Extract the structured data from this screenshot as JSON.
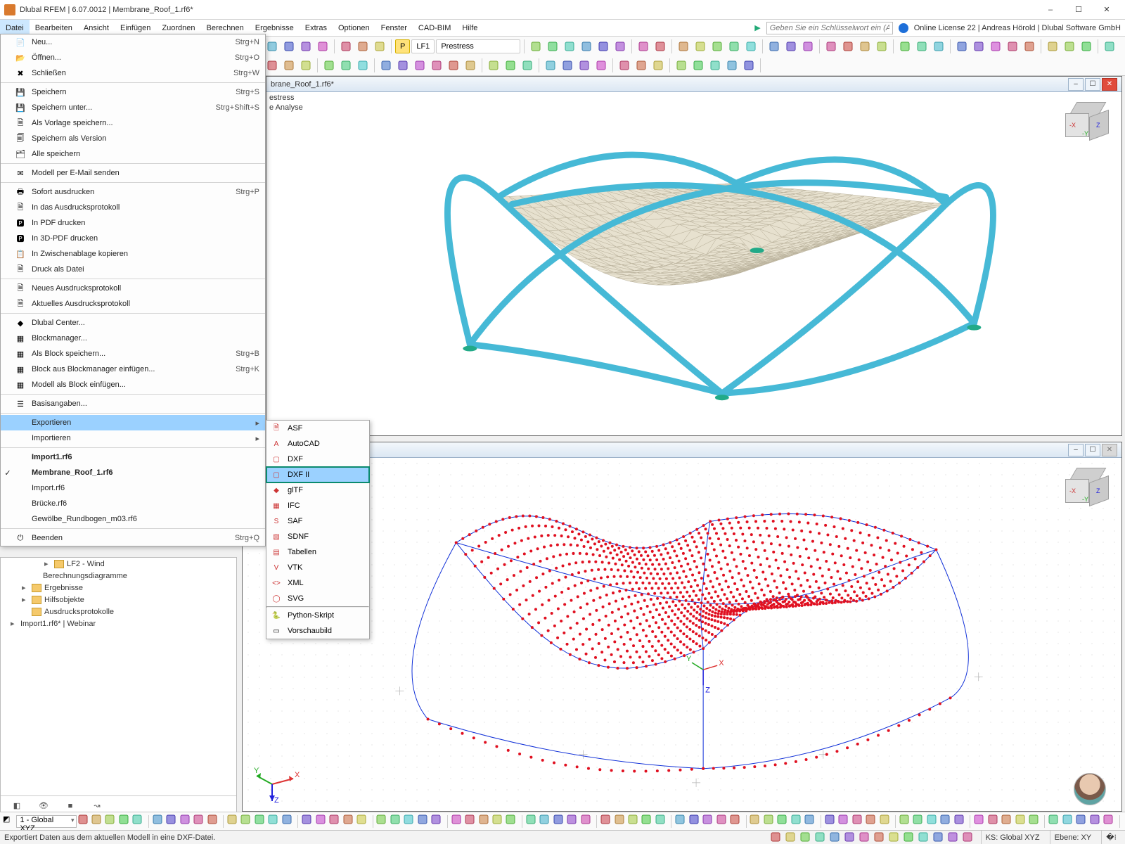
{
  "window": {
    "title": "Dlubal RFEM | 6.07.0012 | Membrane_Roof_1.rf6*",
    "license_text": "Online License 22 | Andreas Hörold | Dlubal Software GmbH",
    "search_placeholder": "Geben Sie ein Schlüsselwort ein (Alt…"
  },
  "menubar": {
    "items": [
      "Datei",
      "Bearbeiten",
      "Ansicht",
      "Einfügen",
      "Zuordnen",
      "Berechnen",
      "Ergebnisse",
      "Extras",
      "Optionen",
      "Fenster",
      "CAD-BIM",
      "Hilfe"
    ],
    "active_index": 0
  },
  "toolbar": {
    "lf_badge": "LF1",
    "lf_text": "Prestress",
    "p_badge": "P"
  },
  "file_menu": {
    "groups": [
      [
        {
          "label": "Neu...",
          "shortcut": "Strg+N",
          "icon": "new"
        },
        {
          "label": "Öffnen...",
          "shortcut": "Strg+O",
          "icon": "open"
        },
        {
          "label": "Schließen",
          "shortcut": "Strg+W",
          "icon": "close"
        }
      ],
      [
        {
          "label": "Speichern",
          "shortcut": "Strg+S",
          "icon": "save"
        },
        {
          "label": "Speichern unter...",
          "shortcut": "Strg+Shift+S",
          "icon": "saveas"
        },
        {
          "label": "Als Vorlage speichern...",
          "icon": "savetpl"
        },
        {
          "label": "Speichern als Version",
          "icon": "savever"
        },
        {
          "label": "Alle speichern",
          "icon": "saveall"
        }
      ],
      [
        {
          "label": "Modell per E-Mail senden",
          "icon": "mail"
        }
      ],
      [
        {
          "label": "Sofort ausdrucken",
          "shortcut": "Strg+P",
          "icon": "print"
        },
        {
          "label": "In das Ausdrucksprotokoll",
          "icon": "printlog"
        },
        {
          "label": "In PDF drucken",
          "icon": "pdf"
        },
        {
          "label": "In 3D-PDF drucken",
          "icon": "pdf3d"
        },
        {
          "label": "In Zwischenablage kopieren",
          "icon": "clip"
        },
        {
          "label": "Druck als Datei",
          "icon": "printfile"
        }
      ],
      [
        {
          "label": "Neues Ausdrucksprotokoll",
          "icon": "newlog"
        },
        {
          "label": "Aktuelles Ausdrucksprotokoll",
          "icon": "curlog"
        }
      ],
      [
        {
          "label": "Dlubal Center...",
          "icon": "dlubal"
        },
        {
          "label": "Blockmanager...",
          "icon": "blockmgr"
        },
        {
          "label": "Als Block speichern...",
          "shortcut": "Strg+B",
          "icon": "blocksave"
        },
        {
          "label": "Block aus Blockmanager einfügen...",
          "shortcut": "Strg+K",
          "icon": "blockins"
        },
        {
          "label": "Modell als Block einfügen...",
          "icon": "blockmod"
        }
      ],
      [
        {
          "label": "Basisangaben...",
          "icon": "basis"
        }
      ],
      [
        {
          "label": "Exportieren",
          "icon": "",
          "submenu": true,
          "highlight": true
        },
        {
          "label": "Importieren",
          "icon": "",
          "submenu": true
        }
      ],
      [
        {
          "label": "Import1.rf6",
          "bold": true
        },
        {
          "label": "Membrane_Roof_1.rf6",
          "bold": true,
          "checked": true
        },
        {
          "label": "Import.rf6"
        },
        {
          "label": "Brücke.rf6"
        },
        {
          "label": "Gewölbe_Rundbogen_m03.rf6"
        }
      ],
      [
        {
          "label": "Beenden",
          "shortcut": "Strg+Q",
          "icon": "exit"
        }
      ]
    ]
  },
  "export_submenu": {
    "items": [
      {
        "label": "ASF",
        "icon": "asf"
      },
      {
        "label": "AutoCAD",
        "icon": "acad"
      },
      {
        "label": "DXF",
        "icon": "dxf"
      },
      {
        "label": "DXF II",
        "icon": "dxf",
        "highlight": true,
        "boxed": true
      },
      {
        "label": "glTF",
        "icon": "gltf"
      },
      {
        "label": "IFC",
        "icon": "ifc"
      },
      {
        "label": "SAF",
        "icon": "saf"
      },
      {
        "label": "SDNF",
        "icon": "sdnf"
      },
      {
        "label": "Tabellen",
        "icon": "tbl"
      },
      {
        "label": "VTK",
        "icon": "vtk"
      },
      {
        "label": "XML",
        "icon": "xml"
      },
      {
        "label": "SVG",
        "icon": "svg"
      }
    ],
    "sep_after": 11,
    "tail": [
      {
        "label": "Python-Skript",
        "icon": "py"
      },
      {
        "label": "Vorschaubild",
        "icon": "thumb"
      }
    ]
  },
  "tree": {
    "lines": [
      {
        "label": "LF2 - Wind",
        "indent": 3,
        "folder": true,
        "twisty": "▸"
      },
      {
        "label": "Berechnungsdiagramme",
        "indent": 2,
        "leaf": true
      },
      {
        "label": "Ergebnisse",
        "indent": 1,
        "folder": true,
        "twisty": "▸"
      },
      {
        "label": "Hilfsobjekte",
        "indent": 1,
        "folder": true,
        "twisty": "▸"
      },
      {
        "label": "Ausdrucksprotokolle",
        "indent": 1,
        "folder": true
      },
      {
        "label": "Import1.rf6* | Webinar",
        "indent": 0,
        "root": true,
        "twisty": "▸"
      }
    ]
  },
  "viewport_top": {
    "title_suffix": "brane_Roof_1.rf6*",
    "sub1": "estress",
    "sub2": "e Analyse",
    "frame_color": "#46b9d6",
    "membrane_fill": "#e7e1cf",
    "membrane_stroke": "#b8b09a"
  },
  "viewport_bottom": {
    "outline_color": "#1030d8",
    "node_color": "#e01020",
    "node_count_hint": 900
  },
  "axis": {
    "x_color": "#d33",
    "y_color": "#2a2",
    "z_color": "#22d",
    "x_label": "X",
    "y_label": "Y",
    "z_label": "Z"
  },
  "bottom_toolbar": {
    "combo": "1 - Global XYZ"
  },
  "statusbar": {
    "hint": "Exportiert Daten aus dem aktuellen Modell in eine DXF-Datei.",
    "ks": "KS: Global XYZ",
    "ebene": "Ebene: XY"
  },
  "colors": {
    "highlight_bg": "#9bd1ff",
    "hover_bg": "#cde8ff",
    "box_outline": "#0a8a6e"
  }
}
